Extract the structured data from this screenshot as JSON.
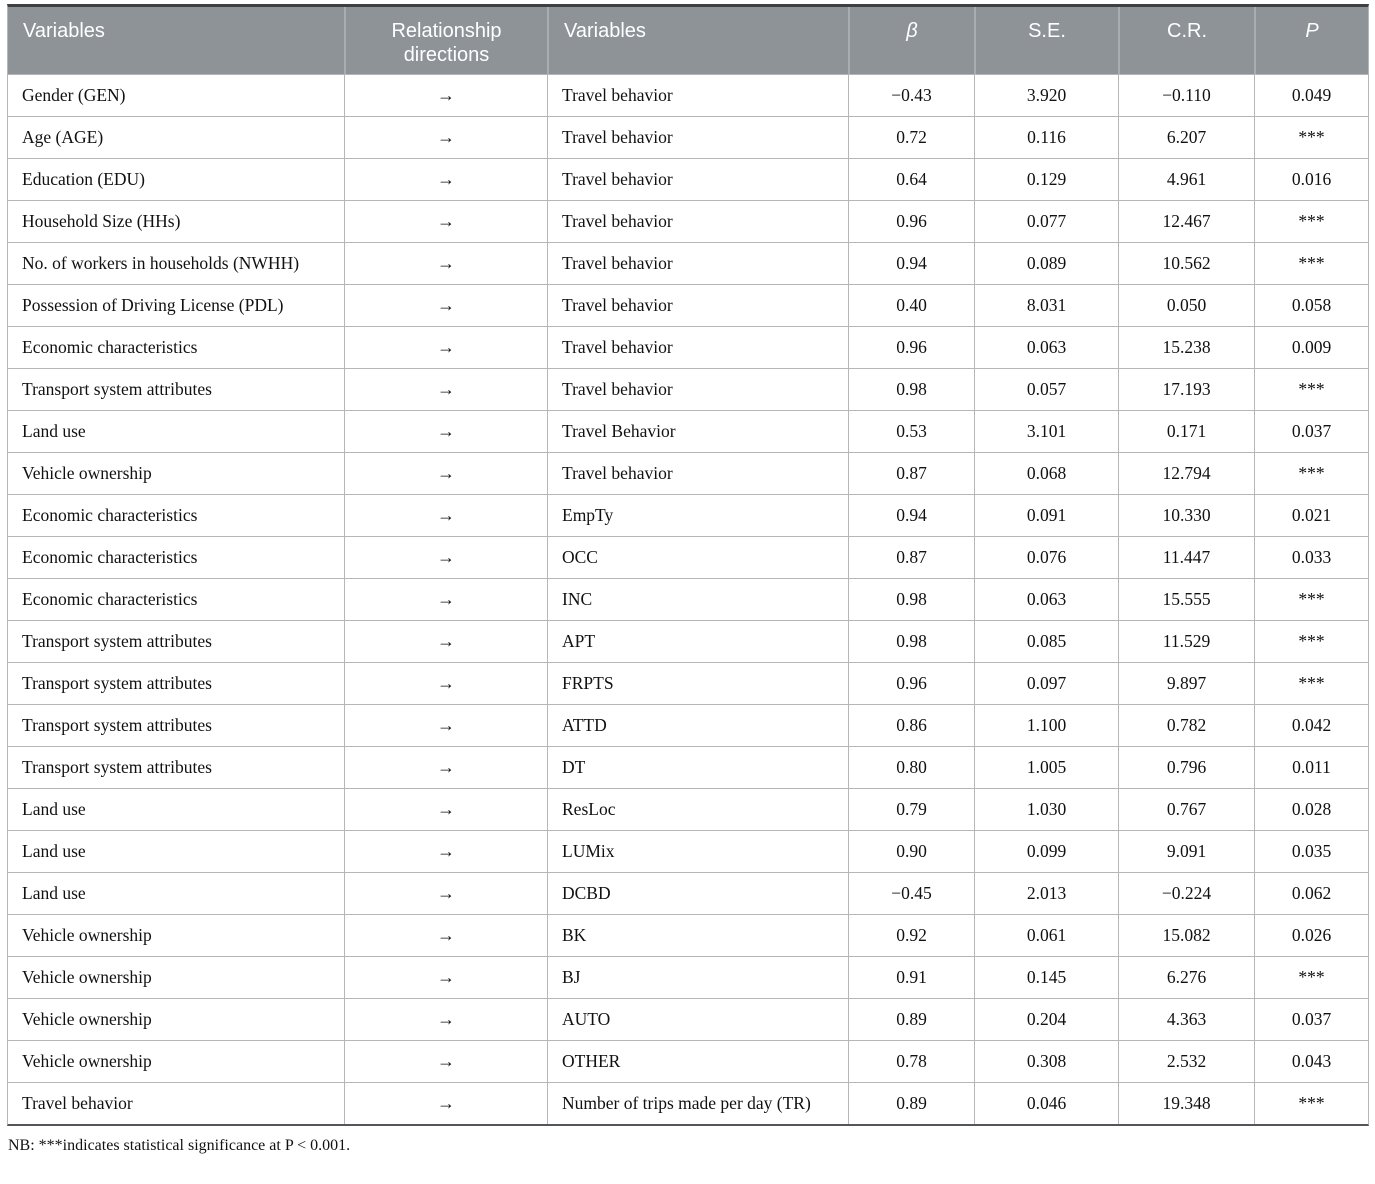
{
  "table": {
    "headers": {
      "var_from": "Variables",
      "relationship": "Relationship directions",
      "var_to": "Variables",
      "beta": "β",
      "se": "S.E.",
      "cr": "C.R.",
      "p": "P"
    },
    "rows": [
      {
        "from": "Gender (GEN)",
        "arrow": "→",
        "to": "Travel behavior",
        "beta": "−0.43",
        "se": "3.920",
        "cr": "−0.110",
        "p": "0.049"
      },
      {
        "from": "Age (AGE)",
        "arrow": "→",
        "to": "Travel behavior",
        "beta": "0.72",
        "se": "0.116",
        "cr": "6.207",
        "p": "***"
      },
      {
        "from": "Education (EDU)",
        "arrow": "→",
        "to": "Travel behavior",
        "beta": "0.64",
        "se": "0.129",
        "cr": "4.961",
        "p": "0.016"
      },
      {
        "from": "Household Size (HHs)",
        "arrow": "→",
        "to": "Travel behavior",
        "beta": "0.96",
        "se": "0.077",
        "cr": "12.467",
        "p": "***"
      },
      {
        "from": "No. of workers in households (NWHH)",
        "arrow": "→",
        "to": "Travel behavior",
        "beta": "0.94",
        "se": "0.089",
        "cr": "10.562",
        "p": "***"
      },
      {
        "from": "Possession of Driving License (PDL)",
        "arrow": "→",
        "to": "Travel behavior",
        "beta": "0.40",
        "se": "8.031",
        "cr": "0.050",
        "p": "0.058"
      },
      {
        "from": "Economic characteristics",
        "arrow": "→",
        "to": "Travel behavior",
        "beta": "0.96",
        "se": "0.063",
        "cr": "15.238",
        "p": "0.009"
      },
      {
        "from": "Transport system attributes",
        "arrow": "→",
        "to": "Travel behavior",
        "beta": "0.98",
        "se": "0.057",
        "cr": "17.193",
        "p": "***"
      },
      {
        "from": "Land use",
        "arrow": "→",
        "to": "Travel Behavior",
        "beta": "0.53",
        "se": "3.101",
        "cr": "0.171",
        "p": "0.037"
      },
      {
        "from": "Vehicle ownership",
        "arrow": "→",
        "to": "Travel behavior",
        "beta": "0.87",
        "se": "0.068",
        "cr": "12.794",
        "p": "***"
      },
      {
        "from": "Economic characteristics",
        "arrow": "→",
        "to": "EmpTy",
        "beta": "0.94",
        "se": "0.091",
        "cr": "10.330",
        "p": "0.021"
      },
      {
        "from": "Economic characteristics",
        "arrow": "→",
        "to": "OCC",
        "beta": "0.87",
        "se": "0.076",
        "cr": "11.447",
        "p": "0.033"
      },
      {
        "from": "Economic characteristics",
        "arrow": "→",
        "to": "INC",
        "beta": "0.98",
        "se": "0.063",
        "cr": "15.555",
        "p": "***"
      },
      {
        "from": "Transport system attributes",
        "arrow": "→",
        "to": "APT",
        "beta": "0.98",
        "se": "0.085",
        "cr": "11.529",
        "p": "***"
      },
      {
        "from": "Transport system attributes",
        "arrow": "→",
        "to": "FRPTS",
        "beta": "0.96",
        "se": "0.097",
        "cr": "9.897",
        "p": "***"
      },
      {
        "from": "Transport system attributes",
        "arrow": "→",
        "to": "ATTD",
        "beta": "0.86",
        "se": "1.100",
        "cr": "0.782",
        "p": "0.042"
      },
      {
        "from": "Transport system attributes",
        "arrow": "→",
        "to": "DT",
        "beta": "0.80",
        "se": "1.005",
        "cr": "0.796",
        "p": "0.011"
      },
      {
        "from": "Land use",
        "arrow": "→",
        "to": "ResLoc",
        "beta": "0.79",
        "se": "1.030",
        "cr": "0.767",
        "p": "0.028"
      },
      {
        "from": "Land use",
        "arrow": "→",
        "to": "LUMix",
        "beta": "0.90",
        "se": "0.099",
        "cr": "9.091",
        "p": "0.035"
      },
      {
        "from": "Land use",
        "arrow": "→",
        "to": "DCBD",
        "beta": "−0.45",
        "se": "2.013",
        "cr": "−0.224",
        "p": "0.062"
      },
      {
        "from": "Vehicle ownership",
        "arrow": "→",
        "to": "BK",
        "beta": "0.92",
        "se": "0.061",
        "cr": "15.082",
        "p": "0.026"
      },
      {
        "from": "Vehicle ownership",
        "arrow": "→",
        "to": "BJ",
        "beta": "0.91",
        "se": "0.145",
        "cr": "6.276",
        "p": "***"
      },
      {
        "from": "Vehicle ownership",
        "arrow": "→",
        "to": "AUTO",
        "beta": "0.89",
        "se": "0.204",
        "cr": "4.363",
        "p": "0.037"
      },
      {
        "from": "Vehicle ownership",
        "arrow": "→",
        "to": "OTHER",
        "beta": "0.78",
        "se": "0.308",
        "cr": "2.532",
        "p": "0.043"
      },
      {
        "from": "Travel behavior",
        "arrow": "→",
        "to": "Number of trips made per day (TR)",
        "beta": "0.89",
        "se": "0.046",
        "cr": "19.348",
        "p": "***"
      }
    ]
  },
  "footnote": "NB: ***indicates statistical significance at P < 0.001.",
  "colors": {
    "header_bg": "#8e9398",
    "header_text": "#ffffff",
    "header_divider": "#a9adb1",
    "grid_line": "#b4b7b9",
    "top_border": "#3d3f40",
    "body_text": "#111111"
  }
}
